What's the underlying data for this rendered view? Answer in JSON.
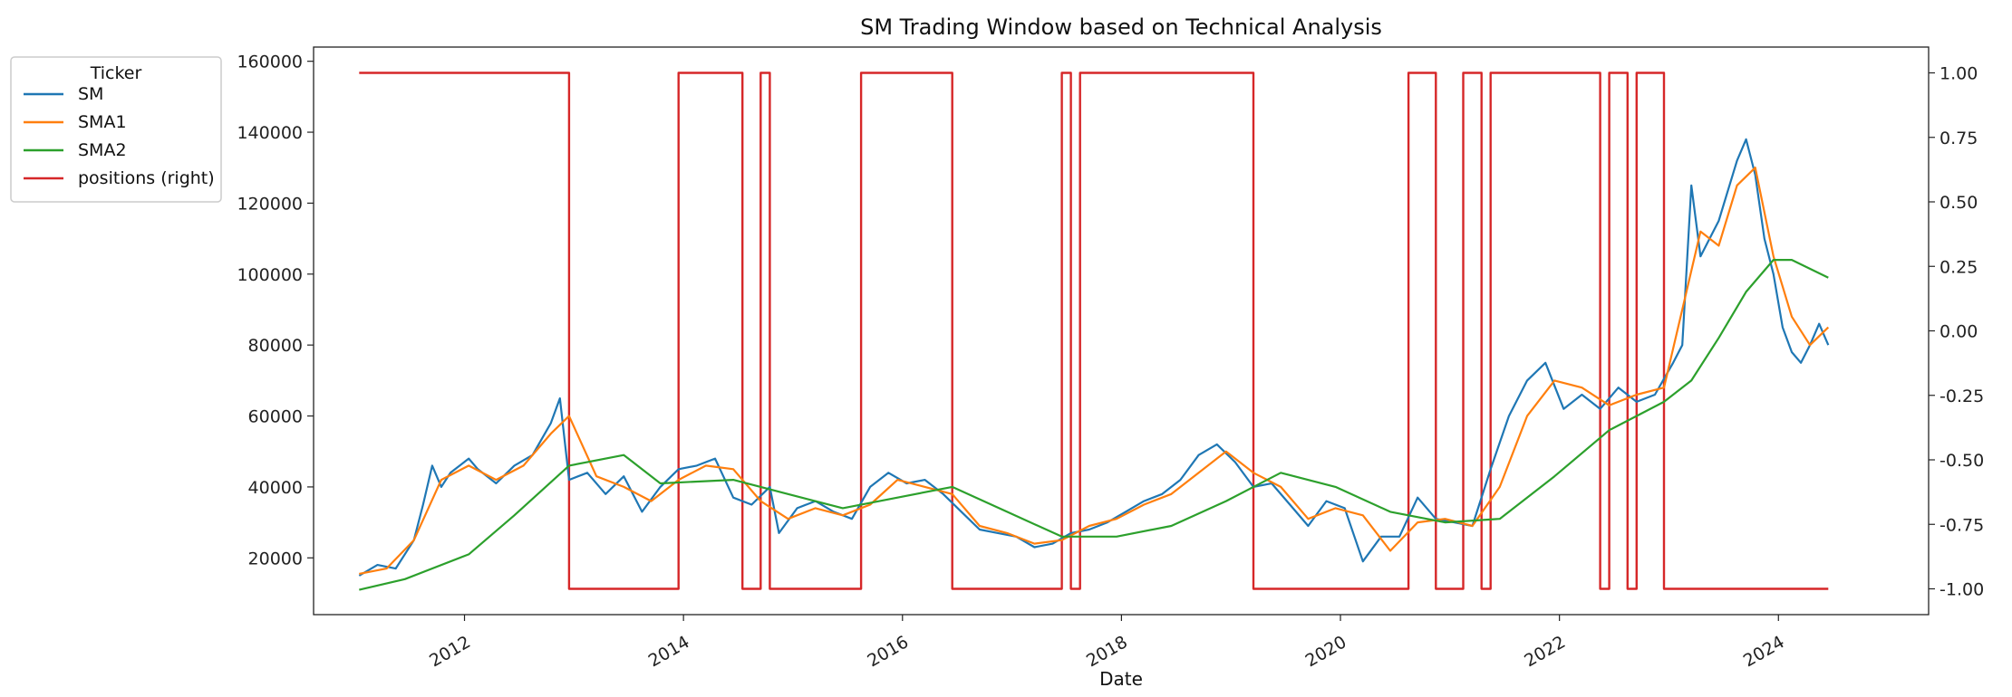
{
  "chart_data": {
    "type": "line",
    "title": "SM Trading Window based on Technical Analysis",
    "xlabel": "Date",
    "ylabel": "",
    "y2label": "",
    "xlim": [
      "2010-08-15",
      "2025-05-15"
    ],
    "ylim": [
      4000,
      164000
    ],
    "y2lim": [
      -1.1,
      1.1
    ],
    "x_ticks": [
      "2012",
      "2014",
      "2016",
      "2018",
      "2020",
      "2022",
      "2024"
    ],
    "y_ticks": [
      20000,
      40000,
      60000,
      80000,
      100000,
      120000,
      140000,
      160000
    ],
    "y_tick_labels": [
      "20000",
      "40000",
      "60000",
      "80000",
      "100000",
      "120000",
      "140000",
      "160000"
    ],
    "y2_ticks": [
      1.0,
      0.75,
      0.5,
      0.25,
      0.0,
      -0.25,
      -0.5,
      -0.75,
      -1.0
    ],
    "y2_tick_labels": [
      "1.00",
      "0.75",
      "0.50",
      "0.25",
      "0.00",
      "-0.25",
      "-0.50",
      "-0.75",
      "-1.00"
    ],
    "grid": false,
    "legend": {
      "title": "Ticker",
      "placement": "upper-left-outside",
      "entries": [
        "SM",
        "SMA1",
        "SMA2",
        "positions (right)"
      ]
    },
    "colors": {
      "SM": "#1f77b4",
      "SMA1": "#ff7f0e",
      "SMA2": "#2ca02c",
      "positions": "#d62728"
    },
    "series": [
      {
        "name": "SM",
        "axis": "left",
        "x": [
          "2011-01",
          "2011-03",
          "2011-05",
          "2011-07",
          "2011-08",
          "2011-09",
          "2011-10",
          "2011-11",
          "2012-01",
          "2012-02",
          "2012-04",
          "2012-06",
          "2012-08",
          "2012-10",
          "2012-11",
          "2012-12",
          "2013-02",
          "2013-04",
          "2013-06",
          "2013-08",
          "2013-10",
          "2013-12",
          "2014-02",
          "2014-04",
          "2014-06",
          "2014-08",
          "2014-10",
          "2014-11",
          "2015-01",
          "2015-03",
          "2015-05",
          "2015-07",
          "2015-09",
          "2015-11",
          "2016-01",
          "2016-03",
          "2016-05",
          "2016-07",
          "2016-09",
          "2016-11",
          "2017-01",
          "2017-03",
          "2017-05",
          "2017-07",
          "2017-09",
          "2017-11",
          "2018-01",
          "2018-03",
          "2018-05",
          "2018-07",
          "2018-09",
          "2018-11",
          "2019-01",
          "2019-03",
          "2019-05",
          "2019-07",
          "2019-09",
          "2019-11",
          "2020-01",
          "2020-03",
          "2020-05",
          "2020-07",
          "2020-09",
          "2020-11",
          "2021-01",
          "2021-03",
          "2021-05",
          "2021-07",
          "2021-09",
          "2021-11",
          "2022-01",
          "2022-03",
          "2022-05",
          "2022-07",
          "2022-09",
          "2022-11",
          "2023-01",
          "2023-02",
          "2023-03",
          "2023-04",
          "2023-06",
          "2023-08",
          "2023-09",
          "2023-10",
          "2023-11",
          "2023-12",
          "2024-01",
          "2024-02",
          "2024-03",
          "2024-04",
          "2024-05",
          "2024-06"
        ],
        "values": [
          15000,
          18000,
          17000,
          25000,
          35000,
          46000,
          40000,
          44000,
          48000,
          45000,
          41000,
          46000,
          49000,
          58000,
          65000,
          42000,
          44000,
          38000,
          43000,
          33000,
          40000,
          45000,
          46000,
          48000,
          37000,
          35000,
          40000,
          27000,
          34000,
          36000,
          33000,
          31000,
          40000,
          44000,
          41000,
          42000,
          38000,
          33000,
          28000,
          27000,
          26000,
          23000,
          24000,
          27000,
          28000,
          30000,
          33000,
          36000,
          38000,
          42000,
          49000,
          52000,
          47000,
          40000,
          41000,
          35000,
          29000,
          36000,
          34000,
          19000,
          26000,
          26000,
          37000,
          31000,
          30000,
          29000,
          45000,
          60000,
          70000,
          75000,
          62000,
          66000,
          62000,
          68000,
          64000,
          66000,
          75000,
          80000,
          125000,
          105000,
          115000,
          132000,
          138000,
          128000,
          110000,
          100000,
          85000,
          78000,
          75000,
          80000,
          86000,
          80000
        ]
      },
      {
        "name": "SMA1",
        "axis": "left",
        "x": [
          "2011-01",
          "2011-04",
          "2011-07",
          "2011-10",
          "2012-01",
          "2012-04",
          "2012-07",
          "2012-10",
          "2012-12",
          "2013-03",
          "2013-06",
          "2013-09",
          "2013-12",
          "2014-03",
          "2014-06",
          "2014-09",
          "2014-12",
          "2015-03",
          "2015-06",
          "2015-09",
          "2015-12",
          "2016-03",
          "2016-06",
          "2016-09",
          "2016-12",
          "2017-03",
          "2017-06",
          "2017-09",
          "2017-12",
          "2018-03",
          "2018-06",
          "2018-09",
          "2018-12",
          "2019-03",
          "2019-06",
          "2019-09",
          "2019-12",
          "2020-03",
          "2020-06",
          "2020-09",
          "2020-12",
          "2021-03",
          "2021-06",
          "2021-09",
          "2021-12",
          "2022-03",
          "2022-06",
          "2022-09",
          "2022-12",
          "2023-02",
          "2023-04",
          "2023-06",
          "2023-08",
          "2023-10",
          "2023-12",
          "2024-02",
          "2024-04",
          "2024-06"
        ],
        "values": [
          15500,
          17000,
          25000,
          42000,
          46000,
          42000,
          46000,
          55000,
          60000,
          43000,
          40000,
          36000,
          42000,
          46000,
          45000,
          36000,
          31000,
          34000,
          32000,
          35000,
          42000,
          40000,
          38000,
          29000,
          27000,
          24000,
          25000,
          29000,
          31000,
          35000,
          38000,
          44000,
          50000,
          44000,
          40000,
          31000,
          34000,
          32000,
          22000,
          30000,
          31000,
          29000,
          40000,
          60000,
          70000,
          68000,
          63000,
          66000,
          68000,
          90000,
          112000,
          108000,
          125000,
          130000,
          105000,
          88000,
          80000,
          85000
        ]
      },
      {
        "name": "SMA2",
        "axis": "left",
        "x": [
          "2011-01",
          "2011-06",
          "2012-01",
          "2012-06",
          "2012-12",
          "2013-06",
          "2013-10",
          "2014-06",
          "2014-12",
          "2015-06",
          "2015-12",
          "2016-06",
          "2016-12",
          "2017-06",
          "2017-12",
          "2018-06",
          "2018-12",
          "2019-06",
          "2019-12",
          "2020-06",
          "2020-12",
          "2021-06",
          "2021-12",
          "2022-06",
          "2022-12",
          "2023-03",
          "2023-06",
          "2023-09",
          "2023-12",
          "2024-02",
          "2024-06"
        ],
        "values": [
          11000,
          14000,
          21000,
          32000,
          46000,
          49000,
          41000,
          42000,
          38000,
          34000,
          37000,
          40000,
          33000,
          26000,
          26000,
          29000,
          36000,
          44000,
          40000,
          33000,
          30000,
          31000,
          43000,
          56000,
          64000,
          70000,
          82000,
          95000,
          104000,
          104000,
          99000
        ]
      },
      {
        "name": "positions (right)",
        "axis": "right",
        "step": true,
        "x": [
          "2011-01",
          "2012-12",
          "2013-12",
          "2014-07",
          "2014-09",
          "2014-10",
          "2015-08",
          "2016-06",
          "2017-06",
          "2017-07",
          "2017-08",
          "2019-03",
          "2020-08",
          "2020-11",
          "2021-02",
          "2021-04",
          "2021-05",
          "2022-05",
          "2022-06",
          "2022-08",
          "2022-09",
          "2022-12",
          "2023-11",
          "2024-06"
        ],
        "values": [
          1,
          -1,
          1,
          -1,
          1,
          -1,
          1,
          -1,
          1,
          -1,
          1,
          -1,
          1,
          -1,
          1,
          -1,
          1,
          -1,
          1,
          -1,
          1,
          -1,
          -1,
          -1
        ]
      }
    ]
  }
}
